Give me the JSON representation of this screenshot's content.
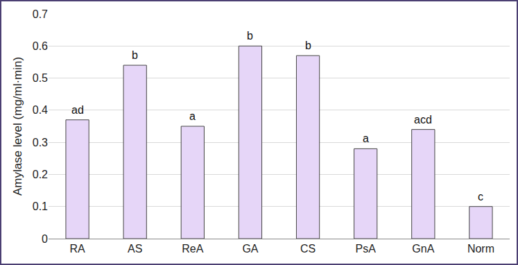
{
  "chart_data": {
    "type": "bar",
    "y_label": "Amylase level (mg/ml·min)",
    "categories": [
      "RA",
      "AS",
      "ReA",
      "GA",
      "CS",
      "PsA",
      "GnA",
      "Norm"
    ],
    "values": [
      0.37,
      0.54,
      0.35,
      0.6,
      0.57,
      0.28,
      0.34,
      0.1
    ],
    "annotations": [
      "ad",
      "b",
      "a",
      "b",
      "b",
      "a",
      "acd",
      "c"
    ],
    "color": "#e6d6f8",
    "ylim": [
      0,
      0.7
    ],
    "yticks": [
      0,
      0.1,
      0.2,
      0.3,
      0.4,
      0.5,
      0.6,
      0.7
    ],
    "grid": true
  }
}
